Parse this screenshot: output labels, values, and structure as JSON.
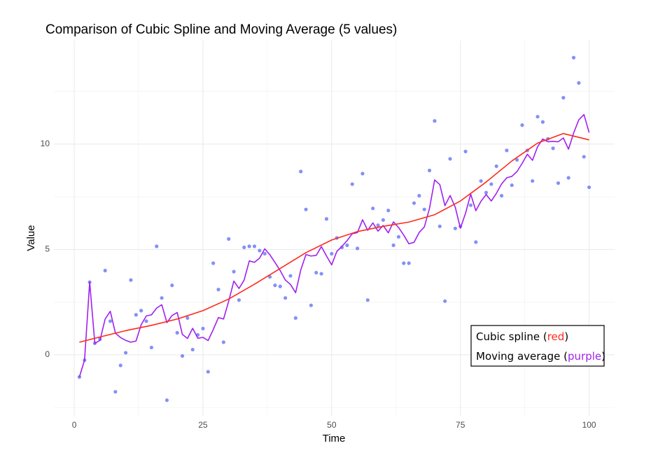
{
  "chart_data": {
    "type": "scatter-lines",
    "title": "Comparison of Cubic Spline and Moving Average (5 values)",
    "x_label": "Time",
    "y_label": "Value",
    "xlim": [
      -3.95,
      104.95
    ],
    "ylim": [
      -2.91,
      14.91
    ],
    "xticks": [
      0,
      25,
      50,
      75,
      100
    ],
    "yticks": [
      0,
      5,
      10
    ],
    "grid": true,
    "x": [
      1,
      2,
      3,
      4,
      5,
      6,
      7,
      8,
      9,
      10,
      11,
      12,
      13,
      14,
      15,
      16,
      17,
      18,
      19,
      20,
      21,
      22,
      23,
      24,
      25,
      26,
      27,
      28,
      29,
      30,
      31,
      32,
      33,
      34,
      35,
      36,
      37,
      38,
      39,
      40,
      41,
      42,
      43,
      44,
      45,
      46,
      47,
      48,
      49,
      50,
      51,
      52,
      53,
      54,
      55,
      56,
      57,
      58,
      59,
      60,
      61,
      62,
      63,
      64,
      65,
      66,
      67,
      68,
      69,
      70,
      71,
      72,
      73,
      74,
      75,
      76,
      77,
      78,
      79,
      80,
      81,
      82,
      83,
      84,
      85,
      86,
      87,
      88,
      89,
      90,
      91,
      92,
      93,
      94,
      95,
      96,
      97,
      98,
      99,
      100
    ],
    "series": [
      {
        "kind": "points",
        "color": "#6f7df7",
        "values": [
          -1.05,
          -0.25,
          3.45,
          0.55,
          0.75,
          4.0,
          1.6,
          -1.75,
          -0.5,
          0.1,
          3.55,
          1.9,
          2.1,
          1.6,
          0.35,
          5.15,
          2.7,
          -2.15,
          3.3,
          1.05,
          -0.05,
          1.75,
          0.25,
          0.95,
          1.25,
          -0.8,
          4.35,
          3.1,
          0.6,
          5.5,
          3.95,
          2.6,
          5.1,
          5.15,
          5.15,
          4.95,
          4.8,
          3.7,
          3.3,
          3.25,
          2.7,
          3.75,
          1.75,
          8.7,
          6.9,
          2.35,
          3.9,
          3.85,
          6.45,
          4.8,
          5.55,
          5.1,
          5.2,
          8.1,
          5.05,
          8.6,
          2.6,
          6.95,
          6.15,
          6.4,
          6.85,
          5.2,
          5.6,
          4.35,
          4.35,
          7.2,
          7.55,
          6.9,
          8.75,
          11.1,
          6.1,
          2.55,
          9.3,
          6.0,
          6.1,
          9.65,
          7.1,
          5.35,
          8.25,
          7.7,
          8.1,
          8.95,
          7.55,
          9.7,
          8.05,
          9.25,
          10.9,
          9.7,
          8.25,
          11.3,
          11.05,
          10.25,
          9.8,
          8.15,
          12.2,
          8.4,
          14.1,
          12.9,
          9.4,
          7.95
        ]
      },
      {
        "kind": "line",
        "color": "#a020f0",
        "values": [
          -1.05,
          -0.25,
          3.45,
          0.55,
          0.69,
          1.7,
          2.07,
          1.03,
          0.82,
          0.69,
          0.6,
          0.66,
          1.43,
          1.85,
          1.9,
          2.22,
          2.38,
          1.53,
          1.87,
          2.01,
          0.97,
          0.78,
          1.26,
          0.79,
          0.83,
          0.68,
          1.2,
          1.77,
          1.7,
          2.55,
          3.5,
          3.15,
          3.55,
          4.46,
          4.39,
          4.59,
          5.03,
          4.75,
          4.38,
          4.0,
          3.55,
          3.34,
          2.95,
          4.03,
          4.76,
          4.69,
          4.72,
          5.14,
          4.69,
          4.27,
          4.91,
          5.15,
          5.42,
          5.75,
          5.8,
          6.41,
          5.91,
          6.26,
          5.87,
          6.14,
          5.79,
          6.31,
          6.04,
          5.68,
          5.27,
          5.34,
          5.81,
          6.07,
          6.95,
          8.3,
          8.08,
          7.08,
          7.56,
          7.01,
          6.01,
          6.72,
          7.63,
          6.84,
          7.29,
          7.61,
          7.3,
          7.67,
          8.11,
          8.4,
          8.47,
          8.7,
          9.09,
          9.52,
          9.23,
          9.88,
          10.24,
          10.11,
          10.13,
          10.11,
          10.29,
          9.76,
          10.53,
          11.15,
          11.4,
          10.55
        ]
      },
      {
        "kind": "curve",
        "color": "#ff2a1a",
        "x": [
          1,
          5,
          10,
          15,
          20,
          25,
          30,
          35,
          40,
          45,
          50,
          55,
          60,
          65,
          70,
          75,
          80,
          85,
          90,
          95,
          100
        ],
        "values": [
          0.6,
          0.85,
          1.15,
          1.4,
          1.7,
          2.1,
          2.65,
          3.35,
          4.1,
          4.85,
          5.45,
          5.85,
          6.1,
          6.3,
          6.65,
          7.3,
          8.2,
          9.2,
          10.05,
          10.5,
          10.2
        ]
      }
    ],
    "legend": [
      {
        "series": 2,
        "text": [
          "Cubic spline (",
          "red",
          ")"
        ]
      },
      {
        "series": 1,
        "text": [
          "Moving average (",
          "purple",
          ")"
        ]
      }
    ]
  }
}
